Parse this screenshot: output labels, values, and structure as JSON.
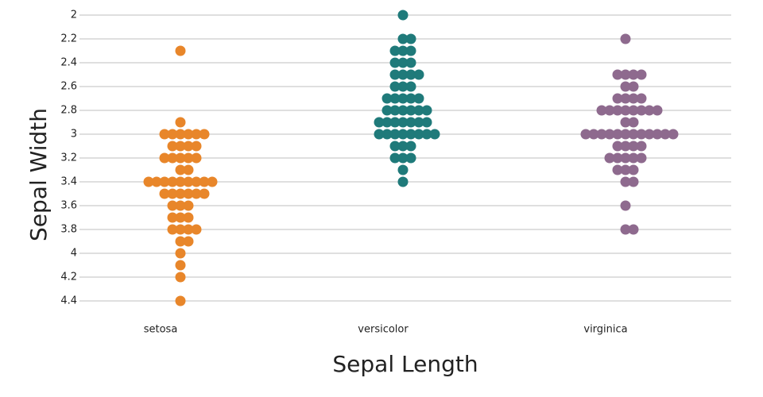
{
  "chart_data": {
    "type": "strip",
    "x_label": "Sepal Length",
    "y_label": "Sepal Width",
    "categories": [
      "setosa",
      "versicolor",
      "virginica"
    ],
    "colors": [
      "#e8862a",
      "#1f7a7a",
      "#8e6a8e"
    ],
    "values": [
      [
        3.5,
        3.0,
        3.2,
        3.1,
        3.6,
        3.9,
        3.4,
        3.4,
        2.9,
        3.1,
        3.7,
        3.4,
        3.0,
        3.0,
        4.0,
        4.4,
        3.9,
        3.5,
        3.8,
        3.8,
        3.4,
        3.7,
        3.6,
        3.3,
        3.4,
        3.0,
        3.4,
        3.5,
        3.4,
        3.2,
        3.1,
        3.4,
        4.1,
        4.2,
        3.1,
        3.2,
        3.5,
        3.6,
        3.0,
        3.4,
        3.5,
        2.3,
        3.2,
        3.5,
        3.8,
        3.0,
        3.8,
        3.2,
        3.7,
        3.3
      ],
      [
        3.2,
        3.2,
        3.1,
        2.3,
        2.8,
        2.8,
        3.3,
        2.4,
        2.9,
        2.7,
        2.0,
        3.0,
        2.2,
        2.9,
        2.9,
        3.1,
        3.0,
        2.7,
        2.2,
        2.5,
        3.2,
        2.8,
        2.5,
        2.8,
        2.9,
        3.0,
        2.8,
        3.0,
        2.9,
        2.6,
        2.4,
        2.4,
        2.7,
        2.7,
        3.0,
        3.4,
        3.1,
        2.3,
        3.0,
        2.5,
        2.6,
        3.0,
        2.6,
        2.3,
        2.7,
        3.0,
        2.9,
        2.9,
        2.5,
        2.8
      ],
      [
        3.3,
        2.7,
        3.0,
        2.9,
        3.0,
        3.0,
        2.5,
        2.9,
        2.5,
        3.6,
        3.2,
        2.7,
        3.0,
        2.5,
        2.8,
        3.2,
        3.0,
        3.8,
        2.6,
        2.2,
        3.2,
        2.8,
        2.8,
        2.7,
        3.3,
        3.2,
        2.8,
        3.0,
        2.8,
        3.0,
        2.8,
        3.8,
        2.8,
        2.8,
        2.6,
        3.0,
        3.4,
        3.1,
        3.0,
        3.1,
        3.1,
        3.1,
        2.7,
        3.2,
        3.3,
        3.0,
        2.5,
        3.0,
        3.4,
        3.0
      ]
    ],
    "ylim": [
      2,
      4.4
    ],
    "y_reversed": true,
    "yticks": [
      2,
      2.2,
      2.4,
      2.6,
      2.8,
      3,
      3.2,
      3.4,
      3.6,
      3.8,
      4,
      4.2,
      4.4
    ],
    "grid": true
  }
}
